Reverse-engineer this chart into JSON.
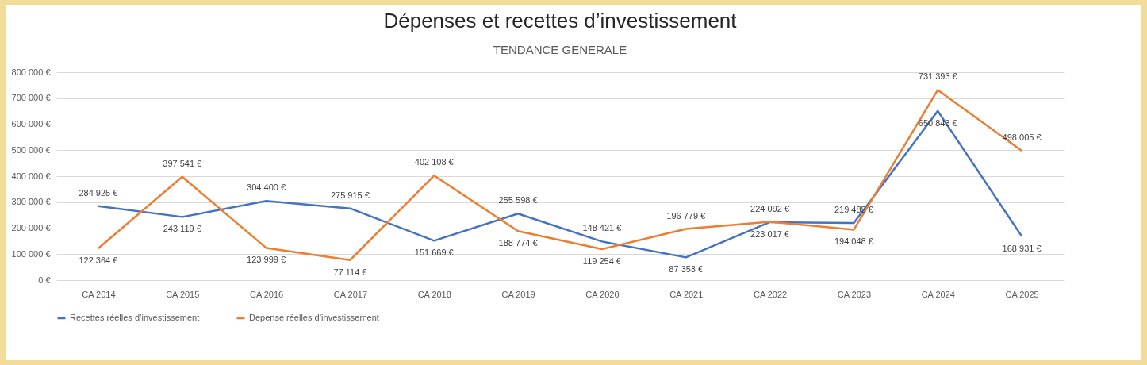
{
  "chart_data": {
    "type": "line",
    "title": "Dépenses et recettes d’investissement",
    "subtitle": "TENDANCE GENERALE",
    "categories": [
      "CA 2014",
      "CA 2015",
      "CA 2016",
      "CA 2017",
      "CA 2018",
      "CA 2019",
      "CA 2020",
      "CA 2021",
      "CA 2022",
      "CA 2023",
      "CA 2024",
      "CA 2025"
    ],
    "series": [
      {
        "name": "Recettes réelles d’investissement",
        "color": "#4472c4",
        "values": [
          284925,
          243119,
          304400,
          275915,
          151669,
          255598,
          148421,
          87353,
          223017,
          219485,
          650843,
          168931
        ],
        "value_labels": [
          "284 925 €",
          "243 119 €",
          "304 400 €",
          "275 915 €",
          "151 669 €",
          "255 598 €",
          "148 421 €",
          "87 353 €",
          "223 017 €",
          "219 485 €",
          "650 843 €",
          "168 931 €"
        ]
      },
      {
        "name": "Depense réelles d’investissement",
        "color": "#ed7d31",
        "values": [
          122364,
          397541,
          123999,
          77114,
          402108,
          188774,
          119254,
          196779,
          224092,
          194048,
          731393,
          498005
        ],
        "value_labels": [
          "122 364 €",
          "397 541 €",
          "123 999 €",
          "77 114 €",
          "402 108 €",
          "188 774 €",
          "119 254 €",
          "196 779 €",
          "224 092 €",
          "194 048 €",
          "731 393 €",
          "498 005 €"
        ]
      }
    ],
    "ylim": [
      0,
      800000
    ],
    "yticks": [
      {
        "value": 0,
        "label": "0 €"
      },
      {
        "value": 100000,
        "label": "100 000 €"
      },
      {
        "value": 200000,
        "label": "200 000 €"
      },
      {
        "value": 300000,
        "label": "300 000 €"
      },
      {
        "value": 400000,
        "label": "400 000 €"
      },
      {
        "value": 500000,
        "label": "500 000 €"
      },
      {
        "value": 600000,
        "label": "600 000 €"
      },
      {
        "value": 700000,
        "label": "700 000 €"
      },
      {
        "value": 800000,
        "label": "800 000 €"
      }
    ],
    "grid": "y",
    "legend": "bottom",
    "marker": "none",
    "line_style": "solid"
  }
}
